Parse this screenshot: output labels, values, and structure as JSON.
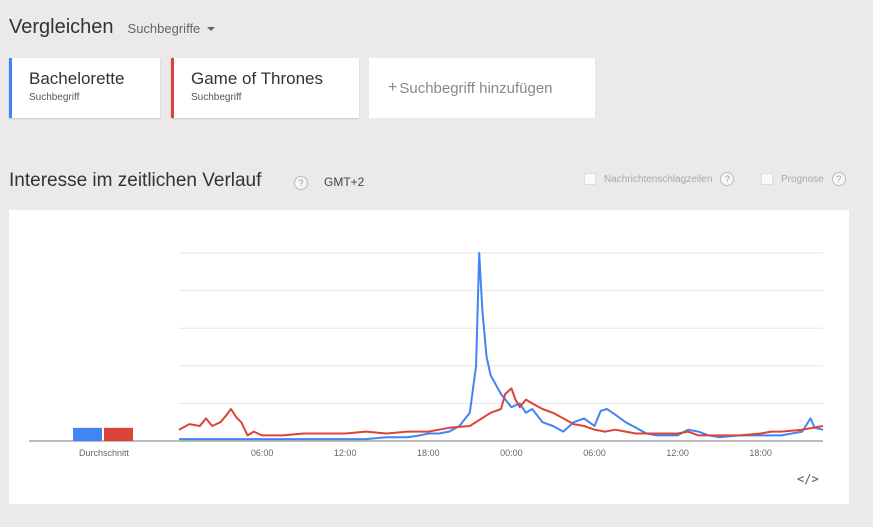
{
  "header": {
    "title": "Vergleichen",
    "mode_label": "Suchbegriffe"
  },
  "terms": [
    {
      "name": "Bachelorette",
      "type": "Suchbegriff",
      "color": "#4184f3"
    },
    {
      "name": "Game of Thrones",
      "type": "Suchbegriff",
      "color": "#db4437"
    }
  ],
  "add_term": {
    "plus": "+",
    "label": "Suchbegriff hinzufügen"
  },
  "section": {
    "title": "Interesse im zeitlichen Verlauf",
    "help": "?",
    "timezone": "GMT+2"
  },
  "options": [
    {
      "label": "Nachrichtenschlagzeilen",
      "help": "?"
    },
    {
      "label": "Prognose",
      "help": "?"
    }
  ],
  "embed_icon": "embed-code-icon",
  "chart_data": {
    "type": "line",
    "average_label": "Durchschnitt",
    "average": [
      {
        "name": "Bachelorette",
        "value": 7,
        "color": "#4184f3"
      },
      {
        "name": "Game of Thrones",
        "value": 7,
        "color": "#db4437"
      }
    ],
    "ylim": [
      0,
      100
    ],
    "grid": true,
    "x_range_hours": [
      0,
      26.5
    ],
    "x_ticks": [
      {
        "h": 4,
        "label": "06:00"
      },
      {
        "h": 8,
        "label": "12:00"
      },
      {
        "h": 12,
        "label": "18:00"
      },
      {
        "h": 16,
        "label": "00:00"
      },
      {
        "h": 20,
        "label": "06:00"
      },
      {
        "h": 24,
        "label": "12:00"
      },
      {
        "h": 28,
        "label": "18:00"
      }
    ],
    "series": [
      {
        "name": "Bachelorette",
        "color": "#4184f3",
        "points": [
          [
            0,
            1
          ],
          [
            1,
            1
          ],
          [
            1.5,
            1
          ],
          [
            2,
            1
          ],
          [
            3,
            1
          ],
          [
            4,
            1
          ],
          [
            5,
            1
          ],
          [
            6,
            1
          ],
          [
            7,
            1
          ],
          [
            8,
            1
          ],
          [
            9,
            1
          ],
          [
            10,
            2
          ],
          [
            11,
            2
          ],
          [
            11.6,
            3
          ],
          [
            12,
            4
          ],
          [
            12.5,
            4
          ],
          [
            13,
            5
          ],
          [
            13.5,
            8
          ],
          [
            14,
            15
          ],
          [
            14.3,
            40
          ],
          [
            14.45,
            100
          ],
          [
            14.6,
            70
          ],
          [
            14.8,
            45
          ],
          [
            15,
            35
          ],
          [
            15.5,
            25
          ],
          [
            16,
            18
          ],
          [
            16.4,
            20
          ],
          [
            16.7,
            15
          ],
          [
            17,
            17
          ],
          [
            17.5,
            10
          ],
          [
            18,
            8
          ],
          [
            18.5,
            5
          ],
          [
            19,
            10
          ],
          [
            19.5,
            12
          ],
          [
            20,
            8
          ],
          [
            20.3,
            16
          ],
          [
            20.6,
            17
          ],
          [
            21,
            14
          ],
          [
            21.5,
            10
          ],
          [
            22,
            7
          ],
          [
            22.5,
            4
          ],
          [
            23,
            3
          ],
          [
            24,
            3
          ],
          [
            24.5,
            6
          ],
          [
            25,
            5
          ],
          [
            25.5,
            3
          ],
          [
            26,
            2
          ],
          [
            27,
            3
          ],
          [
            28,
            3
          ],
          [
            29,
            3
          ],
          [
            30,
            5
          ],
          [
            30.4,
            12
          ],
          [
            30.6,
            7
          ],
          [
            31,
            6
          ]
        ]
      },
      {
        "name": "Game of Thrones",
        "color": "#db4437",
        "points": [
          [
            0,
            6
          ],
          [
            0.5,
            9
          ],
          [
            1,
            8
          ],
          [
            1.3,
            12
          ],
          [
            1.6,
            8
          ],
          [
            2,
            10
          ],
          [
            2.3,
            14
          ],
          [
            2.5,
            17
          ],
          [
            2.8,
            12
          ],
          [
            3,
            10
          ],
          [
            3.3,
            3
          ],
          [
            3.6,
            5
          ],
          [
            4,
            3
          ],
          [
            5,
            3
          ],
          [
            6,
            4
          ],
          [
            7,
            4
          ],
          [
            8,
            4
          ],
          [
            9,
            5
          ],
          [
            10,
            4
          ],
          [
            11,
            5
          ],
          [
            12,
            5
          ],
          [
            13,
            7
          ],
          [
            14,
            8
          ],
          [
            15,
            15
          ],
          [
            15.5,
            17
          ],
          [
            15.7,
            25
          ],
          [
            16,
            28
          ],
          [
            16.2,
            22
          ],
          [
            16.4,
            18
          ],
          [
            16.7,
            22
          ],
          [
            17,
            20
          ],
          [
            17.5,
            17
          ],
          [
            18,
            15
          ],
          [
            18.5,
            12
          ],
          [
            19,
            9
          ],
          [
            19.5,
            8
          ],
          [
            20,
            6
          ],
          [
            20.5,
            5
          ],
          [
            21,
            6
          ],
          [
            21.5,
            5
          ],
          [
            22,
            4
          ],
          [
            23,
            4
          ],
          [
            24,
            4
          ],
          [
            24.5,
            5
          ],
          [
            25,
            3
          ],
          [
            26,
            3
          ],
          [
            27,
            3
          ],
          [
            28,
            4
          ],
          [
            28.5,
            5
          ],
          [
            29,
            5
          ],
          [
            30,
            6
          ],
          [
            31,
            8
          ]
        ]
      }
    ]
  }
}
